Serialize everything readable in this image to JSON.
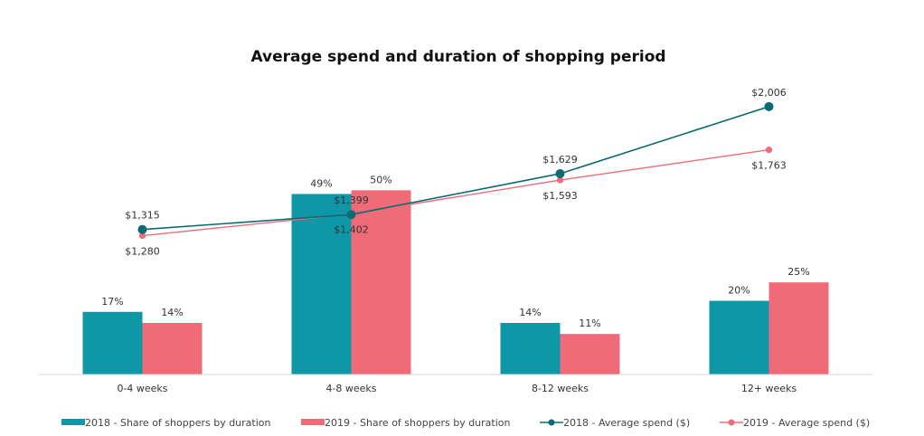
{
  "chart_data": {
    "type": "bar",
    "title": "Average spend and duration of shopping period",
    "categories": [
      "0-4 weeks",
      "4-8 weeks",
      "8-12 weeks",
      "12+ weeks"
    ],
    "bar_series": [
      {
        "name": "2018 - Share of shoppers by duration",
        "values": [
          17,
          49,
          14,
          20
        ],
        "labels": [
          "17%",
          "49%",
          "14%",
          "20%"
        ],
        "color": "#0e97a7"
      },
      {
        "name": "2019 - Share of shoppers by duration",
        "values": [
          14,
          50,
          11,
          25
        ],
        "labels": [
          "14%",
          "50%",
          "11%",
          "25%"
        ],
        "color": "#ef6b78"
      }
    ],
    "line_series": [
      {
        "name": "2018 - Average spend ($)",
        "values": [
          1315,
          1399,
          1629,
          2006
        ],
        "labels": [
          "$1,315",
          "$1,399",
          "$1,629",
          "$2,006"
        ],
        "label_position": [
          "above",
          "above",
          "above",
          "above"
        ],
        "color": "#0b6b73"
      },
      {
        "name": "2019 - Average spend ($)",
        "values": [
          1280,
          1402,
          1593,
          1763
        ],
        "labels": [
          "$1,280",
          "$1,402",
          "$1,593",
          "$1,763"
        ],
        "label_position": [
          "below",
          "below",
          "below",
          "below"
        ],
        "color": "#ef6b78"
      }
    ],
    "bar_axis": {
      "ylim": [
        0,
        55
      ]
    },
    "line_axis": {
      "ylim": [
        500,
        2300
      ]
    },
    "legend_position": "bottom",
    "grid": false
  }
}
